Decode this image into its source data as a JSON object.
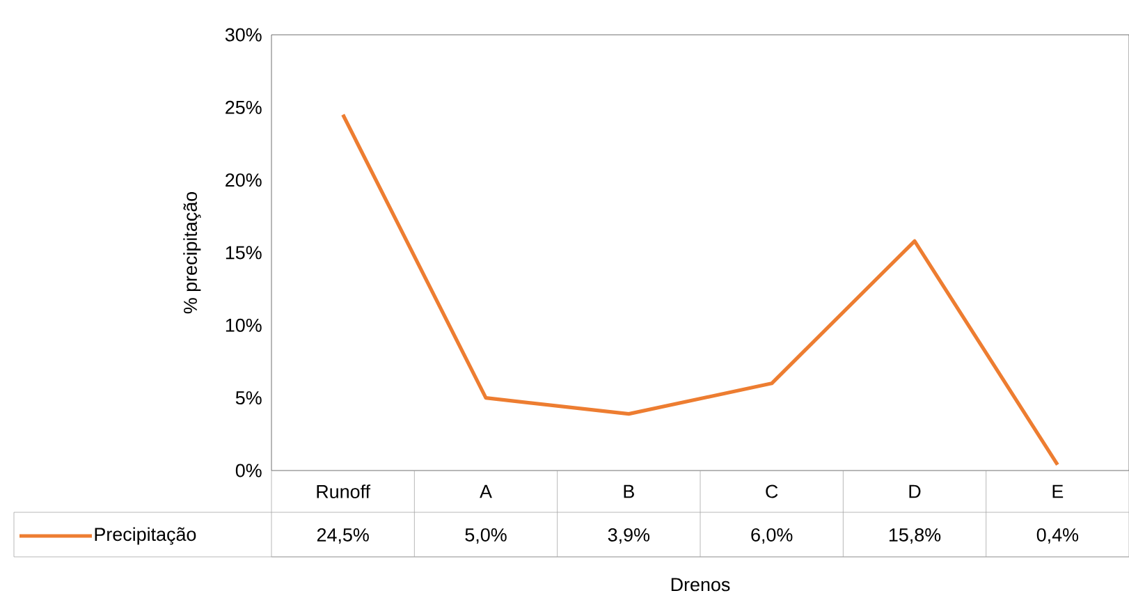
{
  "chart_data": {
    "type": "line",
    "xlabel": "Drenos",
    "ylabel": "% precipitação",
    "categories": [
      "Runoff",
      "A",
      "B",
      "C",
      "D",
      "E"
    ],
    "series": [
      {
        "name": "Precipitação",
        "color": "#ed7d31",
        "values": [
          24.5,
          5.0,
          3.9,
          6.0,
          15.8,
          0.4
        ],
        "value_labels": [
          "24,5%",
          "5,0%",
          "3,9%",
          "6,0%",
          "15,8%",
          "0,4%"
        ]
      }
    ],
    "ylim": [
      0,
      30
    ],
    "yticks": [
      {
        "value": 0,
        "label": "0%"
      },
      {
        "value": 5,
        "label": "5%"
      },
      {
        "value": 10,
        "label": "10%"
      },
      {
        "value": 15,
        "label": "15%"
      },
      {
        "value": 20,
        "label": "20%"
      },
      {
        "value": 25,
        "label": "25%"
      },
      {
        "value": 30,
        "label": "30%"
      }
    ],
    "grid": false,
    "marker": "none",
    "line_style": "solid"
  }
}
